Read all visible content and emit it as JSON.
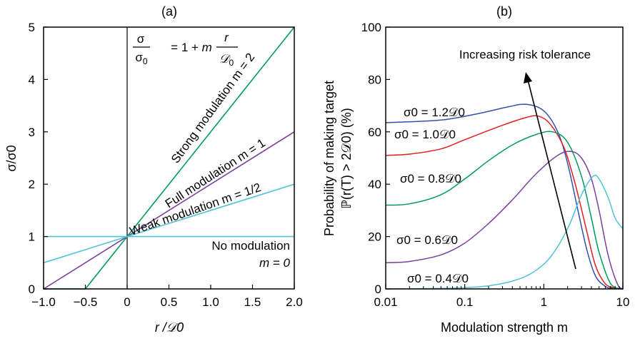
{
  "chart_data": [
    {
      "panel": "(a)",
      "type": "line",
      "xlabel": "r /𝒟0",
      "ylabel": "σ/σ0",
      "xlim": [
        -1.0,
        2.0
      ],
      "ylim": [
        0,
        5
      ],
      "xticks": [
        "−1.0",
        "−0.5",
        "0",
        "0.5",
        "1.0",
        "1.5",
        "2.0"
      ],
      "yticks": [
        "0",
        "1",
        "2",
        "3",
        "4",
        "5"
      ],
      "formula": "σ/σ0 = 1 + m r/𝒟0",
      "series": [
        {
          "name": "Strong modulation m = 2",
          "m": 2,
          "color": "#009a5a",
          "x": [
            -1.0,
            -0.5,
            2.0
          ],
          "y": [
            0,
            0,
            5
          ]
        },
        {
          "name": "Full modulation m = 1",
          "m": 1,
          "color": "#7d3fa0",
          "x": [
            -1.0,
            2.0
          ],
          "y": [
            0,
            3
          ]
        },
        {
          "name": "Weak modulation m = 1/2",
          "m": 0.5,
          "color": "#4fc3d5",
          "x": [
            -1.0,
            2.0
          ],
          "y": [
            0.5,
            2
          ]
        },
        {
          "name": "No modulation m = 0",
          "m": 0,
          "color": "#4fc3d5",
          "x": [
            -1.0,
            2.0
          ],
          "y": [
            1,
            1
          ]
        }
      ],
      "labels": {
        "strong": "Strong modulation m = 2",
        "full": "Full modulation m = 1",
        "weak": "Weak modulation m = 1/2",
        "none_1": "No modulation",
        "none_2": "m = 0"
      }
    },
    {
      "panel": "(b)",
      "type": "line",
      "xlabel": "Modulation strength m",
      "ylabel_1": "Probability of making target",
      "ylabel_2": "ℙ(r(T) > 2𝒟0) (%)",
      "xscale": "log",
      "xlim": [
        0.01,
        10
      ],
      "ylim": [
        0,
        100
      ],
      "xticks": [
        "0.01",
        "0.1",
        "1",
        "10"
      ],
      "yticks": [
        "0",
        "20",
        "40",
        "60",
        "80",
        "100"
      ],
      "annotation": "Increasing risk tolerance",
      "series": [
        {
          "name": "σ0 = 1.2𝒟0",
          "color": "#3050b0",
          "x": [
            0.01,
            0.05,
            0.15,
            0.35,
            0.6,
            1.0,
            1.5,
            2.0,
            2.7,
            3.5,
            4.5,
            6,
            7.5,
            10
          ],
          "y": [
            63.5,
            64.5,
            67,
            69.5,
            70.5,
            68,
            60,
            48,
            30,
            15,
            5,
            1,
            0.2,
            0
          ]
        },
        {
          "name": "σ0 = 1.0𝒟0",
          "color": "#e0201e",
          "x": [
            0.01,
            0.02,
            0.05,
            0.1,
            0.3,
            0.6,
            0.85,
            1.2,
            1.8,
            2.5,
            3.5,
            4.5,
            6,
            8,
            10
          ],
          "y": [
            51,
            51.5,
            53.5,
            57,
            62.5,
            65.5,
            66,
            63,
            54,
            40,
            22,
            9,
            2,
            0.3,
            0
          ]
        },
        {
          "name": "σ0 = 0.8𝒟0",
          "color": "#009a5a",
          "x": [
            0.01,
            0.02,
            0.05,
            0.1,
            0.2,
            0.4,
            0.8,
            1.3,
            2.0,
            3.0,
            4.0,
            5.0,
            7,
            10
          ],
          "y": [
            32,
            32.5,
            36,
            42,
            49,
            55,
            59,
            60,
            56,
            43,
            27,
            14,
            2,
            0
          ]
        },
        {
          "name": "σ0 = 0.6𝒟0",
          "color": "#7d3fa0",
          "x": [
            0.01,
            0.02,
            0.05,
            0.1,
            0.2,
            0.4,
            0.8,
            1.5,
            2.2,
            3.0,
            4.0,
            5.0,
            6.5,
            8.5,
            10
          ],
          "y": [
            10,
            10.5,
            13,
            17.5,
            25,
            34,
            44,
            51,
            52.5,
            50,
            42,
            30,
            13,
            2,
            0
          ]
        },
        {
          "name": "σ0 = 0.4𝒟0",
          "color": "#4fc3d5",
          "x": [
            0.01,
            0.05,
            0.1,
            0.2,
            0.4,
            0.7,
            1.2,
            2.0,
            3.0,
            4.2,
            5.0,
            6.5,
            8.0,
            10
          ],
          "y": [
            0,
            0.2,
            0.5,
            1.2,
            3,
            6,
            12,
            23,
            36,
            43,
            42,
            35,
            27,
            23
          ]
        }
      ]
    }
  ]
}
